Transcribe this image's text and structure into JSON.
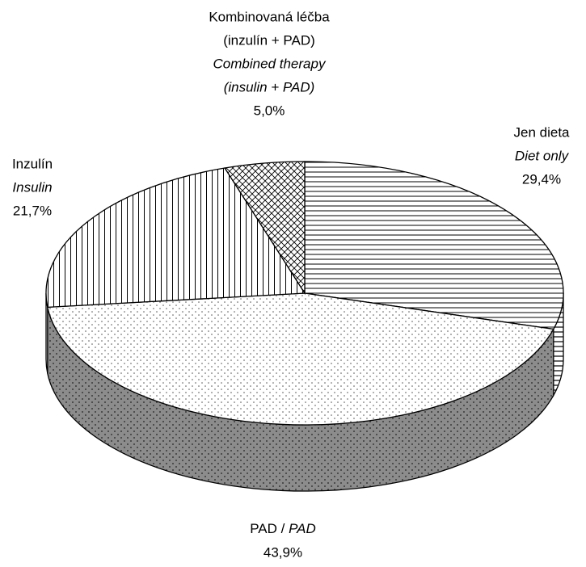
{
  "chart_data": {
    "type": "pie3d",
    "categories": [
      [
        "Jen dieta"
      ],
      [
        "PAD /"
      ],
      [
        "Inzulín"
      ],
      [
        "Kombinovaná léčba",
        "(inzulín + PAD)"
      ]
    ],
    "categories_en": [
      [
        "Diet only"
      ],
      [
        "PAD"
      ],
      [
        "Insulin"
      ],
      [
        "Combined therapy",
        "(insulin + PAD)"
      ]
    ],
    "values": [
      29.4,
      43.9,
      21.7,
      5.0
    ],
    "value_labels": [
      "29,4%",
      "43,9%",
      "21,7%",
      "5,0%"
    ],
    "patterns": [
      "horizontal",
      "dots",
      "vertical",
      "crosshatch"
    ]
  }
}
